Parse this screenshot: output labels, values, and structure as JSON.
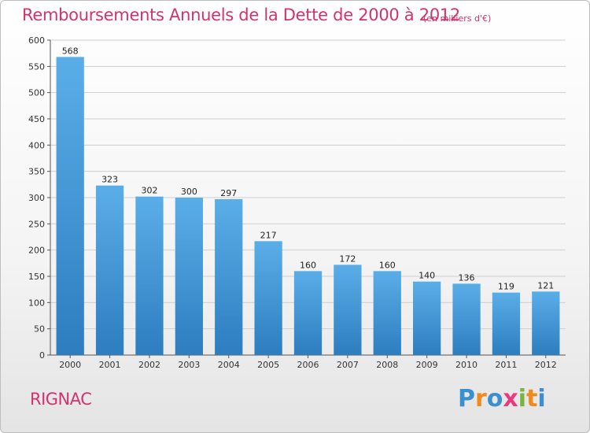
{
  "title": "Remboursements Annuels de la Dette de 2000 à 2012",
  "subtitle": "(en milliers d'€)",
  "town": "RIGNAC",
  "logo": {
    "letters": [
      "P",
      "r",
      "o",
      "x",
      "i",
      "t",
      "i"
    ],
    "colors": [
      "#3a8fd0",
      "#f08a1c",
      "#3a8fd0",
      "#e83a7c",
      "#7ab43c",
      "#f08a1c",
      "#3a8fd0"
    ]
  },
  "chart_data": {
    "type": "bar",
    "categories": [
      "2000",
      "2001",
      "2002",
      "2003",
      "2004",
      "2005",
      "2006",
      "2007",
      "2008",
      "2009",
      "2010",
      "2011",
      "2012"
    ],
    "values": [
      568,
      323,
      302,
      300,
      297,
      217,
      160,
      172,
      160,
      140,
      136,
      119,
      121
    ],
    "ylim": [
      0,
      600
    ],
    "yticks": [
      0,
      50,
      100,
      150,
      200,
      250,
      300,
      350,
      400,
      450,
      500,
      550,
      600
    ],
    "grid": true,
    "bar_color_top": "#5aaee8",
    "bar_color_bottom": "#2d7dbf"
  }
}
